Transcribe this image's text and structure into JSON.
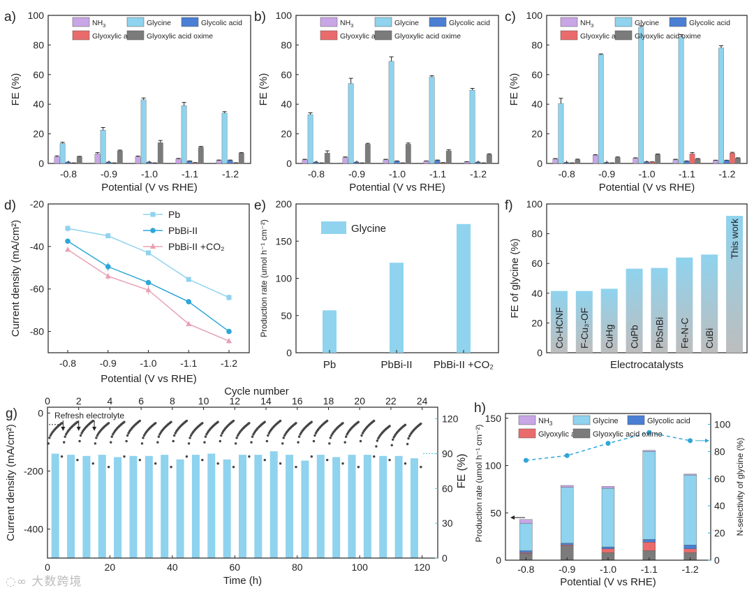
{
  "colors": {
    "nh3": "#c9a6e6",
    "glycine": "#8fd3ee",
    "glycolic": "#4a7fd4",
    "glyoxylic": "#ea6b6b",
    "oxime": "#7b7b7b",
    "pb": "#8fd3ee",
    "pbbi": "#2ea6d9",
    "pbbico2": "#e8a0b4",
    "accent_red": "#e0524e",
    "fe_cyan": "#4fc6e0"
  },
  "panels": {
    "a": "a)",
    "b": "b)",
    "c": "c)",
    "d": "d)",
    "e": "e)",
    "f": "f)",
    "g": "g)",
    "h": "h)"
  },
  "legend_products": [
    "NH3",
    "Glycine",
    "Glycolic acid",
    "Glyoxylic acid",
    "Glyoxylic acid oxime"
  ],
  "watermark": "大数跨境",
  "chart_data": [
    {
      "id": "a",
      "type": "bar",
      "xlabel": "Potential (V vs RHE)",
      "ylabel": "FE (%)",
      "ylim": [
        0,
        100
      ],
      "yticks": [
        0,
        20,
        40,
        60,
        80,
        100
      ],
      "categories": [
        "-0.8",
        "-0.9",
        "-1.0",
        "-1.1",
        "-1.2"
      ],
      "series": [
        {
          "name": "NH3",
          "key": "nh3",
          "values": [
            4.5,
            6.5,
            4.5,
            3.0,
            2.0
          ],
          "err": [
            0.6,
            0.8,
            0.5,
            0.4,
            0.3
          ]
        },
        {
          "name": "Glycine",
          "key": "glycine",
          "values": [
            13.5,
            22.5,
            43,
            39,
            34
          ],
          "err": [
            0.8,
            1.8,
            1.2,
            2.2,
            1.0
          ]
        },
        {
          "name": "Glycolic acid",
          "key": "glycolic",
          "values": [
            0.8,
            0.8,
            0.8,
            1.5,
            2.0
          ],
          "err": [
            0.1,
            0.1,
            0.1,
            0.2,
            0.3
          ]
        },
        {
          "name": "Glyoxylic acid",
          "key": "glyoxylic",
          "values": [
            0.3,
            0.3,
            0.3,
            0.5,
            0.4
          ],
          "err": [
            0.1,
            0.1,
            0.1,
            0.1,
            0.1
          ]
        },
        {
          "name": "Glyoxylic acid oxime",
          "key": "oxime",
          "values": [
            4.5,
            8.5,
            14,
            11,
            7
          ],
          "err": [
            0.3,
            0.5,
            1.5,
            0.5,
            0.3
          ]
        }
      ]
    },
    {
      "id": "b",
      "type": "bar",
      "xlabel": "Potential (V vs RHE)",
      "ylabel": "FE (%)",
      "ylim": [
        0,
        100
      ],
      "yticks": [
        0,
        20,
        40,
        60,
        80,
        100
      ],
      "categories": [
        "-0.8",
        "-0.9",
        "-1.0",
        "-1.1",
        "-1.2"
      ],
      "series": [
        {
          "name": "NH3",
          "key": "nh3",
          "values": [
            2.5,
            4.0,
            2.5,
            1.5,
            1.0
          ],
          "err": [
            0.3,
            0.4,
            0.3,
            0.2,
            0.2
          ]
        },
        {
          "name": "Glycine",
          "key": "glycine",
          "values": [
            33,
            54,
            69,
            58.5,
            49.5
          ],
          "err": [
            1.2,
            3.5,
            3.0,
            0.8,
            1.2
          ]
        },
        {
          "name": "Glycolic acid",
          "key": "glycolic",
          "values": [
            0.8,
            0.8,
            1.5,
            2.0,
            0.8
          ],
          "err": [
            0.1,
            0.1,
            0.2,
            0.3,
            0.1
          ]
        },
        {
          "name": "Glyoxylic acid",
          "key": "glyoxylic",
          "values": [
            0.3,
            0.3,
            0.3,
            0.5,
            0.3
          ],
          "err": [
            0.1,
            0.1,
            0.1,
            0.1,
            0.1
          ]
        },
        {
          "name": "Glyoxylic acid oxime",
          "key": "oxime",
          "values": [
            7,
            13,
            13,
            8.5,
            6
          ],
          "err": [
            1.5,
            0.6,
            0.8,
            0.8,
            0.5
          ]
        }
      ]
    },
    {
      "id": "c",
      "type": "bar",
      "xlabel": "Potential (V vs RHE)",
      "ylabel": "FE (%)",
      "ylim": [
        0,
        100
      ],
      "yticks": [
        0,
        20,
        40,
        60,
        80,
        100
      ],
      "categories": [
        "-0.8",
        "-0.9",
        "-1.0",
        "-1.1",
        "-1.2"
      ],
      "series": [
        {
          "name": "NH3",
          "key": "nh3",
          "values": [
            3.0,
            5.5,
            3.5,
            2.5,
            2.0
          ],
          "err": [
            0.3,
            0.4,
            0.3,
            0.3,
            0.2
          ]
        },
        {
          "name": "Glycine",
          "key": "glycine",
          "values": [
            40.5,
            73.5,
            92,
            85.5,
            78
          ],
          "err": [
            3.5,
            0.5,
            1.0,
            1.5,
            1.5
          ]
        },
        {
          "name": "Glycolic acid",
          "key": "glycolic",
          "values": [
            0.5,
            0.5,
            1.0,
            1.5,
            2.0
          ],
          "err": [
            0.1,
            0.1,
            0.1,
            0.2,
            0.2
          ]
        },
        {
          "name": "Glyoxylic acid",
          "key": "glyoxylic",
          "values": [
            0.3,
            0.3,
            1.0,
            6.5,
            7.0
          ],
          "err": [
            0.1,
            0.1,
            0.1,
            0.8,
            0.5
          ]
        },
        {
          "name": "Glyoxylic acid oxime",
          "key": "oxime",
          "values": [
            2.5,
            4.0,
            6.0,
            3.0,
            3.5
          ],
          "err": [
            0.4,
            0.4,
            0.4,
            0.3,
            0.3
          ]
        }
      ]
    },
    {
      "id": "d",
      "type": "line",
      "xlabel": "Potential (V vs RHE)",
      "ylabel": "Current density (mA/cm²)",
      "ylim": [
        -90,
        -20
      ],
      "yticks": [
        -20,
        -40,
        -60,
        -80
      ],
      "categories": [
        "-0.8",
        "-0.9",
        "-1.0",
        "-1.1",
        "-1.2"
      ],
      "series": [
        {
          "name": "Pb",
          "key": "pb",
          "marker": "square",
          "values": [
            -31.5,
            -35,
            -43,
            -55.5,
            -64
          ],
          "err": [
            1.5,
            0.8,
            0.6,
            0.8,
            1.5
          ]
        },
        {
          "name": "PbBi-II",
          "key": "pbbi",
          "marker": "circle",
          "values": [
            -37.5,
            -49.5,
            -57,
            -66,
            -80
          ],
          "err": [
            0.8,
            2.0,
            1.2,
            0.8,
            0.5
          ]
        },
        {
          "name": "PbBi-II +CO₂",
          "key": "pbbico2",
          "marker": "triangle",
          "values": [
            -41.5,
            -54,
            -60.5,
            -76.5,
            -84.5
          ],
          "err": [
            1.0,
            1.5,
            2.0,
            0.6,
            1.2
          ]
        }
      ]
    },
    {
      "id": "e",
      "type": "bar",
      "xlabel": "",
      "ylabel": "Production rate (umol h⁻¹ cm⁻²)",
      "ylim": [
        0,
        200
      ],
      "yticks": [
        0,
        50,
        100,
        150,
        200
      ],
      "categories": [
        "Pb",
        "PbBi-II",
        "PbBi-II +CO₂"
      ],
      "legend": "Glycine",
      "values": [
        57,
        121,
        173
      ]
    },
    {
      "id": "f",
      "type": "bar",
      "xlabel": "Electrocatalysts",
      "ylabel": "FE of glycine (%)",
      "ylim": [
        0,
        100
      ],
      "yticks": [
        0,
        20,
        40,
        60,
        80,
        100
      ],
      "categories": [
        "Co-HCNF",
        "F-Cu₃-OF",
        "CuHg",
        "CuPb",
        "PbSnBi",
        "Fe-N-C",
        "CuBi",
        "This work"
      ],
      "values": [
        41.5,
        41.5,
        43,
        56.5,
        57,
        64,
        66,
        92
      ]
    },
    {
      "id": "g",
      "type": "scatter+bar",
      "xlabel": "Time (h)",
      "ylabel": "Current density (mA/cm²)",
      "y2label": "FE (%)",
      "top_label": "Cycle number",
      "xlim": [
        0,
        125
      ],
      "ylim": [
        -500,
        20
      ],
      "yticks": [
        0,
        -200,
        -400
      ],
      "y2lim": [
        0,
        130
      ],
      "y2ticks": [
        0,
        30,
        60,
        90,
        120
      ],
      "xticks": [
        0,
        20,
        40,
        60,
        80,
        100,
        120
      ],
      "top_ticks": [
        0,
        2,
        4,
        6,
        8,
        10,
        12,
        14,
        16,
        18,
        20,
        22,
        24
      ],
      "annotation": "Refresh electrolyte",
      "fe_values": [
        90,
        89,
        88,
        89,
        87,
        88,
        88,
        89,
        85,
        89,
        90,
        85,
        89,
        89,
        92,
        89,
        84,
        89,
        87,
        89,
        89,
        88,
        88,
        86
      ]
    },
    {
      "id": "h",
      "type": "stacked-bar+line",
      "xlabel": "Potential (V vs RHE)",
      "ylabel": "Production rate (umol h⁻¹ cm⁻²)",
      "y2label": "N-selectivity of glycine (%)",
      "ylim": [
        0,
        155
      ],
      "yticks": [
        0,
        50,
        100,
        150
      ],
      "y2lim": [
        0,
        108
      ],
      "y2ticks": [
        0,
        20,
        40,
        60,
        80,
        100
      ],
      "categories": [
        "-0.8",
        "-0.9",
        "-1.0",
        "-1.1",
        "-1.2"
      ],
      "stack_order": [
        "oxime",
        "glyoxylic",
        "glycolic",
        "glycine",
        "nh3"
      ],
      "stacks": {
        "oxime": [
          7,
          15,
          8,
          10,
          8
        ],
        "glyoxylic": [
          1,
          1,
          4,
          9,
          4
        ],
        "glycolic": [
          2,
          2,
          2,
          3,
          4
        ],
        "glycine": [
          29,
          59,
          62,
          93,
          74
        ],
        "nh3": [
          4,
          2,
          2,
          1,
          1
        ]
      },
      "selectivity": [
        73.5,
        77,
        86,
        94,
        88
      ]
    }
  ]
}
